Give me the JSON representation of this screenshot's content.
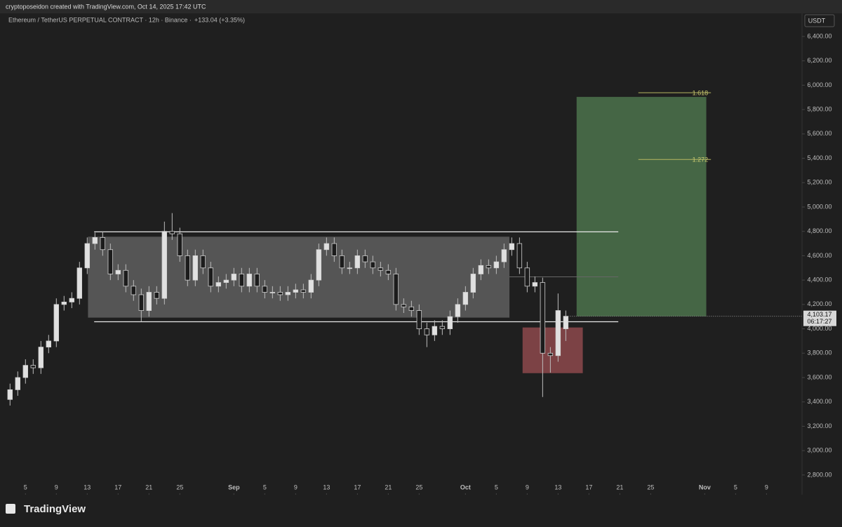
{
  "header": {
    "credit": "cryptoposeidon created with TradingView.com, Oct 14, 2025 17:42 UTC",
    "logo": "TradingView"
  },
  "chart_data": {
    "type": "candlestick",
    "title": "Ethereum / TetherUS PERPETUAL CONTRACT · 12h · Binance ·",
    "change": "+133.04 (+3.35%)",
    "currency": "USDT",
    "x": [
      3,
      4,
      5,
      6,
      7,
      8,
      9,
      10,
      11,
      12,
      13,
      14,
      15,
      16,
      17,
      18,
      19,
      20,
      21,
      22,
      23,
      24,
      25,
      26,
      27,
      28,
      29,
      30,
      31,
      32,
      33,
      34,
      35,
      36,
      37,
      38,
      39,
      40,
      41,
      42,
      43,
      44,
      45,
      46,
      47,
      48,
      49,
      50,
      51,
      52,
      53,
      54,
      55,
      56,
      57,
      58,
      59,
      60,
      61,
      62,
      63,
      64,
      65,
      66,
      67,
      68,
      69,
      70,
      71,
      72,
      73,
      74,
      75
    ],
    "open": [
      3420,
      3500,
      3600,
      3700,
      3680,
      3850,
      3900,
      4200,
      4220,
      4250,
      4500,
      4700,
      4750,
      4650,
      4450,
      4480,
      4350,
      4280,
      4150,
      4300,
      4250,
      4800,
      4780,
      4600,
      4400,
      4600,
      4500,
      4350,
      4380,
      4400,
      4450,
      4350,
      4450,
      4350,
      4300,
      4300,
      4280,
      4300,
      4320,
      4300,
      4400,
      4650,
      4700,
      4600,
      4500,
      4500,
      4600,
      4550,
      4500,
      4480,
      4450,
      4200,
      4180,
      4150,
      4000,
      3950,
      4020,
      4000,
      4100,
      4200,
      4300,
      4450,
      4520,
      4500,
      4550,
      4650,
      4700,
      4500,
      4350,
      4380,
      3800,
      3780,
      4000
    ],
    "high": [
      3550,
      3650,
      3750,
      3750,
      3900,
      3950,
      4250,
      4270,
      4300,
      4550,
      4750,
      4790,
      4800,
      4700,
      4530,
      4530,
      4400,
      4330,
      4350,
      4350,
      4880,
      4950,
      4830,
      4650,
      4650,
      4650,
      4550,
      4430,
      4450,
      4500,
      4500,
      4500,
      4500,
      4400,
      4350,
      4350,
      4350,
      4370,
      4370,
      4450,
      4700,
      4750,
      4750,
      4650,
      4550,
      4650,
      4650,
      4600,
      4550,
      4530,
      4500,
      4250,
      4230,
      4200,
      4050,
      4070,
      4070,
      4150,
      4250,
      4350,
      4500,
      4570,
      4570,
      4600,
      4700,
      4750,
      4750,
      4550,
      4430,
      4420,
      3850,
      4290,
      4150
    ],
    "low": [
      3370,
      3450,
      3550,
      3630,
      3630,
      3800,
      3850,
      4150,
      4170,
      4200,
      4450,
      4650,
      4600,
      4400,
      4400,
      4300,
      4230,
      4060,
      4100,
      4200,
      4200,
      4730,
      4550,
      4350,
      4350,
      4450,
      4300,
      4300,
      4330,
      4350,
      4300,
      4300,
      4300,
      4250,
      4250,
      4230,
      4230,
      4250,
      4250,
      4250,
      4350,
      4600,
      4550,
      4450,
      4450,
      4450,
      4500,
      4450,
      4430,
      4400,
      4150,
      4130,
      4100,
      3950,
      3850,
      3900,
      3950,
      3950,
      4050,
      4150,
      4250,
      4400,
      4450,
      4450,
      4500,
      4600,
      4450,
      4300,
      4300,
      3440,
      3640,
      3730,
      3900
    ],
    "close": [
      3500,
      3600,
      3700,
      3680,
      3850,
      3900,
      4200,
      4220,
      4250,
      4500,
      4700,
      4750,
      4650,
      4450,
      4480,
      4350,
      4280,
      4150,
      4300,
      4250,
      4800,
      4780,
      4600,
      4400,
      4600,
      4500,
      4350,
      4380,
      4400,
      4450,
      4350,
      4450,
      4350,
      4300,
      4300,
      4280,
      4300,
      4320,
      4300,
      4400,
      4650,
      4700,
      4600,
      4500,
      4500,
      4600,
      4550,
      4500,
      4480,
      4450,
      4200,
      4180,
      4150,
      4000,
      3950,
      4020,
      4000,
      4100,
      4200,
      4300,
      4450,
      4520,
      4500,
      4550,
      4650,
      4700,
      4500,
      4350,
      4380,
      3800,
      3780,
      4150,
      4103.17
    ],
    "up_color": "#e0e0e0",
    "down_color": "#1c1c1c",
    "xlim": [
      1.7,
      105.6
    ],
    "ylim": [
      2638,
      6590
    ],
    "xticks": [
      {
        "value": 5,
        "label": "5"
      },
      {
        "value": 9,
        "label": "9"
      },
      {
        "value": 13,
        "label": "13"
      },
      {
        "value": 17,
        "label": "17"
      },
      {
        "value": 21,
        "label": "21"
      },
      {
        "value": 25,
        "label": "25"
      },
      {
        "value": 32,
        "label": "Sep"
      },
      {
        "value": 36,
        "label": "5"
      },
      {
        "value": 40,
        "label": "9"
      },
      {
        "value": 44,
        "label": "13"
      },
      {
        "value": 48,
        "label": "17"
      },
      {
        "value": 52,
        "label": "21"
      },
      {
        "value": 56,
        "label": "25"
      },
      {
        "value": 62,
        "label": "Oct"
      },
      {
        "value": 66,
        "label": "5"
      },
      {
        "value": 70,
        "label": "9"
      },
      {
        "value": 74,
        "label": "13"
      },
      {
        "value": 78,
        "label": "17"
      },
      {
        "value": 82,
        "label": "21"
      },
      {
        "value": 86,
        "label": "25"
      },
      {
        "value": 93,
        "label": "Nov"
      },
      {
        "value": 97,
        "label": "5"
      },
      {
        "value": 101,
        "label": "9"
      }
    ],
    "yticks": [
      {
        "value": 2800,
        "label": "2,800.00"
      },
      {
        "value": 3000,
        "label": "3,000.00"
      },
      {
        "value": 3200,
        "label": "3,200.00"
      },
      {
        "value": 3400,
        "label": "3,400.00"
      },
      {
        "value": 3600,
        "label": "3,600.00"
      },
      {
        "value": 3800,
        "label": "3,800.00"
      },
      {
        "value": 4000,
        "label": "4,000.00"
      },
      {
        "value": 4200,
        "label": "4,200.00"
      },
      {
        "value": 4400,
        "label": "4,400.00"
      },
      {
        "value": 4600,
        "label": "4,600.00"
      },
      {
        "value": 4800,
        "label": "4,800.00"
      },
      {
        "value": 5000,
        "label": "5,000.00"
      },
      {
        "value": 5200,
        "label": "5,200.00"
      },
      {
        "value": 5400,
        "label": "5,400.00"
      },
      {
        "value": 5600,
        "label": "5,600.00"
      },
      {
        "value": 5800,
        "label": "5,800.00"
      },
      {
        "value": 6000,
        "label": "6,000.00"
      },
      {
        "value": 6200,
        "label": "6,200.00"
      },
      {
        "value": 6400,
        "label": "6,400.00"
      }
    ],
    "last_price": {
      "value": 4103.17,
      "label": "4,103.17"
    },
    "countdown": "06:17:27",
    "range_box": {
      "x": [
        13.1,
        67.7
      ],
      "y": [
        4092,
        4756
      ]
    },
    "range_top": {
      "x": [
        13.9,
        81.8
      ],
      "y": 4796
    },
    "range_bottom": {
      "x": [
        13.9,
        81.8
      ],
      "y": 4058
    },
    "range_mid": {
      "x": [
        67.7,
        81.8
      ],
      "y": 4427
    },
    "target_box": {
      "x": [
        76.4,
        93.2
      ],
      "y": [
        4103,
        5904
      ]
    },
    "stop_box": {
      "x": [
        69.4,
        77.2
      ],
      "y": [
        3636,
        4011
      ]
    },
    "fib_levels": [
      {
        "label": "1.618",
        "value": 5938
      },
      {
        "label": "1.272",
        "value": 5390
      }
    ],
    "fib_x": [
      84.4,
      93.8
    ]
  }
}
